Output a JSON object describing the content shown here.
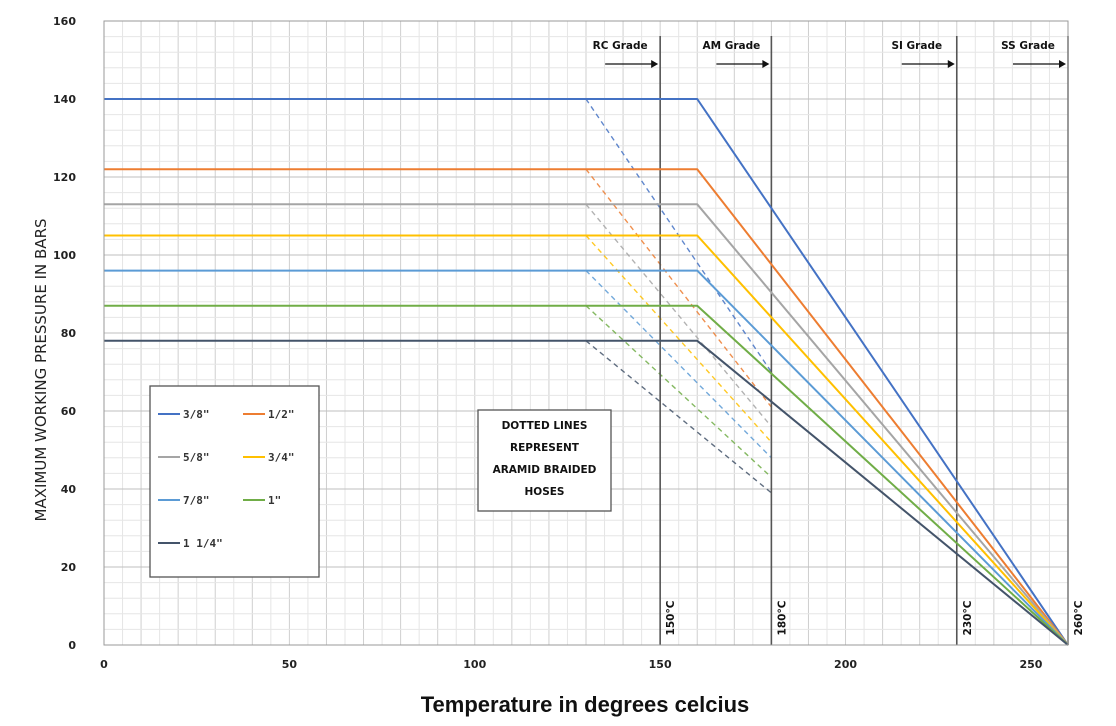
{
  "chart_data": {
    "type": "line",
    "title": "",
    "xlabel": "Temperature in degrees celcius",
    "ylabel": "MAXIMUM WORKING PRESSURE IN BARS",
    "xlim": [
      0,
      260
    ],
    "ylim": [
      0,
      160
    ],
    "x_ticks": [
      0,
      50,
      100,
      150,
      200,
      250
    ],
    "y_ticks": [
      0,
      20,
      40,
      60,
      80,
      100,
      120,
      140,
      160
    ],
    "grid": true,
    "series": [
      {
        "name": "3/8\"",
        "color": "#4472C4",
        "points": [
          [
            0,
            140
          ],
          [
            160,
            140
          ],
          [
            260,
            0
          ]
        ],
        "dotted": {
          "points": [
            [
              130,
              140
            ],
            [
              180,
              70
            ]
          ]
        }
      },
      {
        "name": "1/2\"",
        "color": "#ED7D31",
        "points": [
          [
            0,
            122
          ],
          [
            160,
            122
          ],
          [
            260,
            0
          ]
        ],
        "dotted": {
          "points": [
            [
              130,
              122
            ],
            [
              180,
              61
            ]
          ]
        }
      },
      {
        "name": "5/8\"",
        "color": "#A5A5A5",
        "points": [
          [
            0,
            113
          ],
          [
            160,
            113
          ],
          [
            260,
            0
          ]
        ],
        "dotted": {
          "points": [
            [
              130,
              113
            ],
            [
              180,
              56
            ]
          ]
        }
      },
      {
        "name": "3/4\"",
        "color": "#FFC000",
        "points": [
          [
            0,
            105
          ],
          [
            160,
            105
          ],
          [
            260,
            0
          ]
        ],
        "dotted": {
          "points": [
            [
              130,
              105
            ],
            [
              180,
              52
            ]
          ]
        }
      },
      {
        "name": "7/8\"",
        "color": "#5B9BD5",
        "points": [
          [
            0,
            96
          ],
          [
            160,
            96
          ],
          [
            260,
            0
          ]
        ],
        "dotted": {
          "points": [
            [
              130,
              96
            ],
            [
              180,
              48
            ]
          ]
        }
      },
      {
        "name": "1\"",
        "color": "#70AD47",
        "points": [
          [
            0,
            87
          ],
          [
            160,
            87
          ],
          [
            260,
            0
          ]
        ],
        "dotted": {
          "points": [
            [
              130,
              87
            ],
            [
              180,
              43
            ]
          ]
        }
      },
      {
        "name": "1 1/4\"",
        "color": "#44546A",
        "points": [
          [
            0,
            78
          ],
          [
            160,
            78
          ],
          [
            260,
            0
          ]
        ],
        "dotted": {
          "points": [
            [
              130,
              78
            ],
            [
              180,
              39
            ]
          ]
        }
      }
    ],
    "vertical_markers": [
      {
        "x": 150,
        "label": "150°C",
        "grade": "RC Grade"
      },
      {
        "x": 180,
        "label": "180°C",
        "grade": "AM Grade"
      },
      {
        "x": 230,
        "label": "230°C",
        "grade": "SI Grade"
      },
      {
        "x": 260,
        "label": "260°C",
        "grade": "SS Grade"
      }
    ],
    "note": [
      "DOTTED LINES",
      "REPRESENT",
      "ARAMID BRAIDED",
      "HOSES"
    ],
    "legend_position": "bottom-left"
  }
}
